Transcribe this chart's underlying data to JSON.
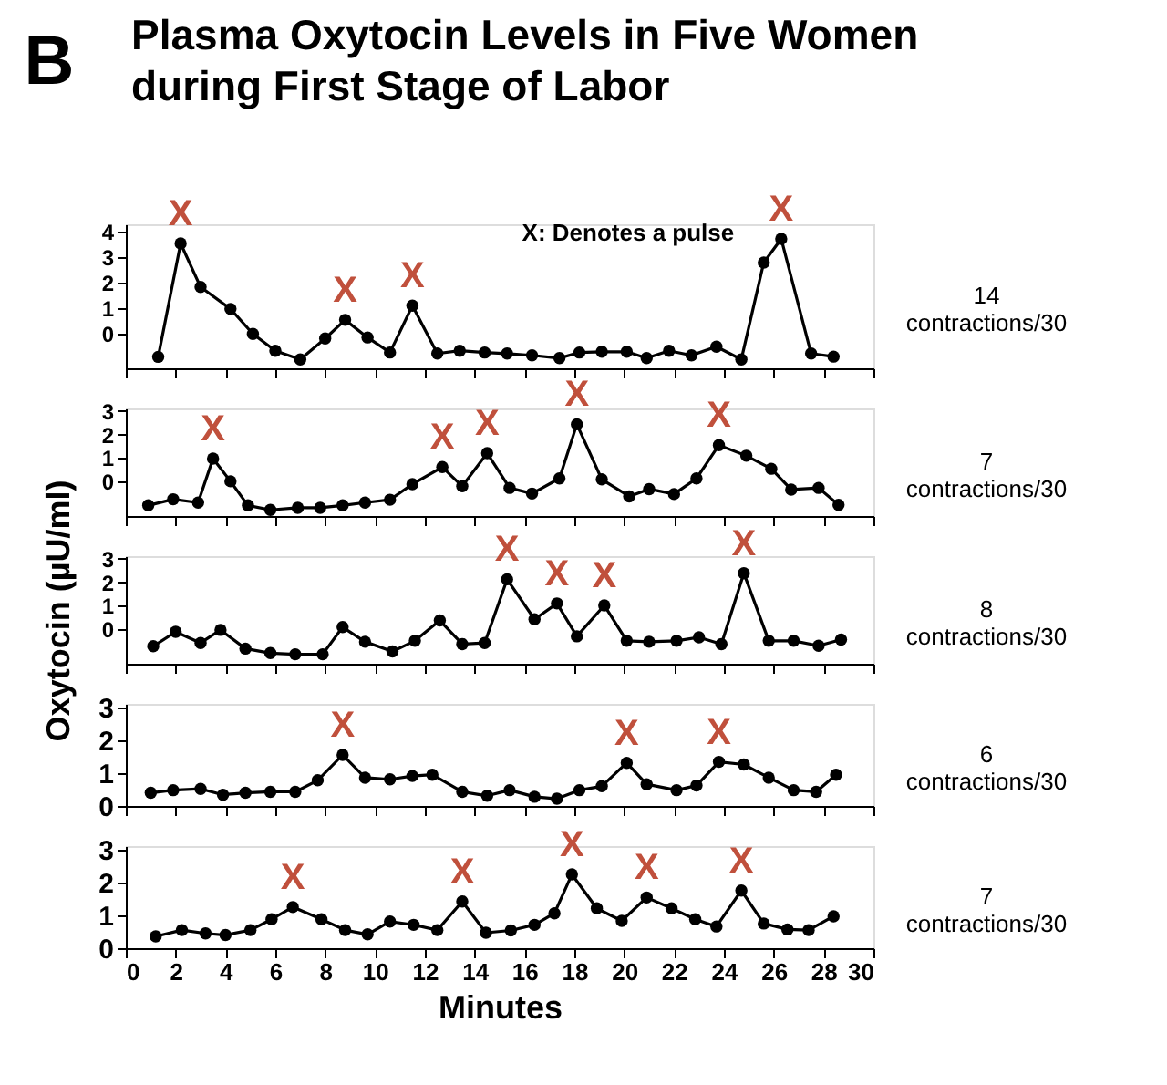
{
  "chart_data": [
    {
      "type": "line",
      "title": "Plasma Oxytocin Levels in Five Women during First Stage of Labor",
      "annotations": [
        "B",
        "X: Denotes a pulse",
        "14 contractions/30",
        {
          "text": "X",
          "x": 2.2,
          "y": 3.55
        },
        {
          "text": "X",
          "x": 8.8,
          "y": 0.55
        },
        {
          "text": "X",
          "x": 11.5,
          "y": 1.11
        },
        {
          "text": "X",
          "x": 26.3,
          "y": 3.73
        }
      ],
      "x": [
        1.3,
        2.2,
        3.0,
        4.2,
        5.1,
        6.0,
        7.0,
        8.0,
        8.8,
        9.7,
        10.6,
        11.5,
        12.5,
        13.4,
        14.4,
        15.3,
        16.3,
        17.4,
        18.2,
        19.1,
        20.1,
        20.9,
        21.8,
        22.7,
        23.7,
        24.7,
        25.6,
        26.3,
        27.5,
        28.4
      ],
      "series": [
        {
          "color": "#000000",
          "values": [
            -0.9,
            3.55,
            1.84,
            0.98,
            0,
            -0.66,
            -1.0,
            -0.18,
            0.55,
            -0.14,
            -0.73,
            1.11,
            -0.77,
            -0.66,
            -0.73,
            -0.77,
            -0.84,
            -0.95,
            -0.73,
            -0.7,
            -0.7,
            -0.95,
            -0.66,
            -0.84,
            -0.5,
            -1.0,
            2.8,
            3.73,
            -0.77,
            -0.89
          ]
        }
      ],
      "xlim": [
        0,
        30
      ],
      "xticks": [
        0,
        2,
        4,
        6,
        8,
        10,
        12,
        14,
        16,
        18,
        20,
        22,
        24,
        26,
        28,
        30
      ],
      "ylim": [
        -1.35,
        4.3
      ],
      "yticks": [
        0,
        1,
        2,
        3,
        4
      ],
      "tick_labels": "y",
      "grid": false,
      "marker": "circle",
      "line_style": "solid"
    },
    {
      "type": "line",
      "annotations": [
        "7 contractions/30",
        {
          "text": "X",
          "x": 3.5,
          "y": 0.98
        },
        {
          "text": "X",
          "x": 12.7,
          "y": 0.62
        },
        {
          "text": "X",
          "x": 14.5,
          "y": 1.21
        },
        {
          "text": "X",
          "x": 18.1,
          "y": 2.43
        },
        {
          "text": "X",
          "x": 23.8,
          "y": 1.55
        }
      ],
      "x": [
        0.9,
        1.9,
        2.9,
        3.5,
        4.2,
        4.9,
        5.8,
        6.9,
        7.8,
        8.7,
        9.6,
        10.6,
        11.5,
        12.7,
        13.5,
        14.5,
        15.4,
        16.3,
        17.4,
        18.1,
        19.1,
        20.2,
        21.0,
        22.0,
        22.9,
        23.8,
        24.9,
        25.9,
        26.7,
        27.8,
        28.6
      ],
      "series": [
        {
          "color": "#000000",
          "values": [
            -1.0,
            -0.74,
            -0.88,
            0.98,
            0.02,
            -1.0,
            -1.19,
            -1.1,
            -1.1,
            -1.0,
            -0.88,
            -0.76,
            -0.1,
            0.62,
            -0.19,
            1.21,
            -0.26,
            -0.5,
            0.14,
            2.43,
            0.1,
            -0.62,
            -0.31,
            -0.52,
            0.14,
            1.55,
            1.1,
            0.55,
            -0.33,
            -0.26,
            -0.98
          ]
        }
      ],
      "xlim": [
        0,
        30
      ],
      "xticks": [
        0,
        2,
        4,
        6,
        8,
        10,
        12,
        14,
        16,
        18,
        20,
        22,
        24,
        26,
        28,
        30
      ],
      "ylim": [
        -1.45,
        3.1
      ],
      "yticks": [
        0,
        1,
        2,
        3
      ],
      "tick_labels": "y",
      "grid": false,
      "marker": "circle",
      "line_style": "solid"
    },
    {
      "type": "line",
      "ylabel": "Oxytocin (µU/ml)",
      "annotations": [
        "8 contractions/30",
        {
          "text": "X",
          "x": 15.3,
          "y": 2.12
        },
        {
          "text": "X",
          "x": 17.3,
          "y": 1.1
        },
        {
          "text": "X",
          "x": 19.2,
          "y": 1.02
        },
        {
          "text": "X",
          "x": 24.8,
          "y": 2.38
        }
      ],
      "x": [
        1.1,
        2.0,
        3.0,
        3.8,
        4.8,
        5.8,
        6.8,
        7.9,
        8.7,
        9.6,
        10.7,
        11.6,
        12.6,
        13.5,
        14.4,
        15.3,
        16.4,
        17.3,
        18.1,
        19.2,
        20.1,
        21.0,
        22.1,
        23.0,
        23.9,
        24.8,
        25.8,
        26.8,
        27.8,
        28.7
      ],
      "series": [
        {
          "color": "#000000",
          "values": [
            -0.71,
            -0.1,
            -0.57,
            -0.02,
            -0.81,
            -1.0,
            -1.05,
            -1.05,
            0.1,
            -0.52,
            -0.93,
            -0.48,
            0.38,
            -0.62,
            -0.57,
            2.12,
            0.43,
            1.1,
            -0.29,
            1.02,
            -0.48,
            -0.52,
            -0.48,
            -0.33,
            -0.62,
            2.38,
            -0.48,
            -0.48,
            -0.69,
            -0.43
          ]
        }
      ],
      "xlim": [
        0,
        30
      ],
      "xticks": [
        0,
        2,
        4,
        6,
        8,
        10,
        12,
        14,
        16,
        18,
        20,
        22,
        24,
        26,
        28,
        30
      ],
      "ylim": [
        -1.45,
        3.1
      ],
      "yticks": [
        0,
        1,
        2,
        3
      ],
      "tick_labels": "y",
      "grid": false,
      "marker": "circle",
      "line_style": "solid"
    },
    {
      "type": "line",
      "annotations": [
        "6 contractions/30",
        {
          "text": "X",
          "x": 8.7,
          "y": 1.55
        },
        {
          "text": "X",
          "x": 20.1,
          "y": 1.31
        },
        {
          "text": "X",
          "x": 23.8,
          "y": 1.34
        }
      ],
      "x": [
        1.0,
        1.9,
        3.0,
        3.9,
        4.8,
        5.8,
        6.8,
        7.7,
        8.7,
        9.6,
        10.6,
        11.5,
        12.3,
        13.5,
        14.5,
        15.4,
        16.4,
        17.3,
        18.2,
        19.1,
        20.1,
        20.9,
        22.1,
        22.9,
        23.8,
        24.8,
        25.8,
        26.8,
        27.7,
        28.5
      ],
      "series": [
        {
          "color": "#000000",
          "values": [
            0.4,
            0.48,
            0.52,
            0.34,
            0.4,
            0.43,
            0.43,
            0.78,
            1.55,
            0.86,
            0.81,
            0.91,
            0.95,
            0.43,
            0.31,
            0.48,
            0.28,
            0.22,
            0.48,
            0.6,
            1.31,
            0.66,
            0.48,
            0.62,
            1.34,
            1.26,
            0.86,
            0.48,
            0.43,
            0.95
          ]
        }
      ],
      "xlim": [
        0,
        30
      ],
      "xticks": [
        0,
        2,
        4,
        6,
        8,
        10,
        12,
        14,
        16,
        18,
        20,
        22,
        24,
        26,
        28,
        30
      ],
      "ylim": [
        0,
        3.1
      ],
      "yticks": [
        0,
        1,
        2,
        3
      ],
      "tick_labels": "y",
      "grid": false,
      "marker": "circle",
      "line_style": "solid"
    },
    {
      "type": "line",
      "xlabel": "Minutes",
      "annotations": [
        "7 contractions/30",
        {
          "text": "X",
          "x": 6.7,
          "y": 1.25
        },
        {
          "text": "X",
          "x": 13.5,
          "y": 1.42
        },
        {
          "text": "X",
          "x": 17.9,
          "y": 2.24
        },
        {
          "text": "X",
          "x": 20.9,
          "y": 1.54
        },
        {
          "text": "X",
          "x": 24.7,
          "y": 1.75
        }
      ],
      "x": [
        1.2,
        2.25,
        3.2,
        4.0,
        5.0,
        5.85,
        6.7,
        7.85,
        8.8,
        9.7,
        10.6,
        11.55,
        12.5,
        13.5,
        14.45,
        15.45,
        16.4,
        17.2,
        17.9,
        18.9,
        19.9,
        20.9,
        21.9,
        22.85,
        23.7,
        24.7,
        25.6,
        26.55,
        27.4,
        28.4
      ],
      "series": [
        {
          "color": "#000000",
          "values": [
            0.36,
            0.55,
            0.45,
            0.4,
            0.55,
            0.88,
            1.25,
            0.88,
            0.55,
            0.42,
            0.81,
            0.71,
            0.55,
            1.42,
            0.47,
            0.54,
            0.71,
            1.06,
            2.24,
            1.21,
            0.83,
            1.54,
            1.21,
            0.88,
            0.66,
            1.75,
            0.75,
            0.57,
            0.55,
            0.97
          ]
        }
      ],
      "xlim": [
        0,
        30
      ],
      "xticks": [
        0,
        2,
        4,
        6,
        8,
        10,
        12,
        14,
        16,
        18,
        20,
        22,
        24,
        26,
        28,
        30
      ],
      "ylim": [
        0,
        3.1
      ],
      "yticks": [
        0,
        1,
        2,
        3
      ],
      "grid": false,
      "marker": "circle",
      "line_style": "solid"
    }
  ]
}
